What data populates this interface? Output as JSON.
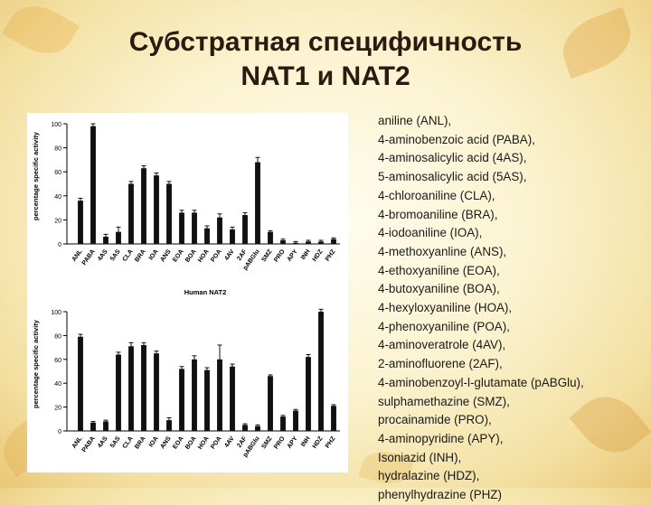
{
  "title": {
    "line1": "Субстратная специфичность",
    "line2": "NAT1 и NAT2"
  },
  "legend_items": [
    "aniline (ANL),",
    "4-aminobenzoic acid (PABA),",
    "4-aminosalicylic acid (4AS),",
    "5-aminosalicylic acid (5AS),",
    "4-chloroaniline (CLA),",
    " 4-bromoaniline (BRA),",
    " 4-iodoaniline (IOA),",
    " 4-methoxyanline (ANS),",
    " 4-ethoxyaniline (EOA),",
    " 4-butoxyaniline (BOA),",
    " 4-hexyloxyaniline (HOA),",
    " 4-phenoxyaniline (POA),",
    "4-aminoveratrole (4AV),",
    "2-aminofluorene (2AF),",
    "4-aminobenzoyl-l-glutamate (pABGlu),",
    "sulphamethazine (SMZ),",
    "procainamide (PRO),",
    "4-aminopyridine (APY),",
    "Isoniazid (INH),",
    "hydralazine (HDZ),",
    "phenylhydrazine (PHZ)"
  ],
  "colors": {
    "bar": "#111111",
    "text": "#2a1a10"
  },
  "chart_data": [
    {
      "type": "bar",
      "title": "",
      "xlabel": "",
      "ylabel": "percentage specific activity",
      "ylim": [
        0,
        100
      ],
      "yticks": [
        0,
        20,
        40,
        60,
        80,
        100
      ],
      "categories": [
        "ANL",
        "PABA",
        "4AS",
        "5AS",
        "CLA",
        "BRA",
        "IOA",
        "ANS",
        "EOA",
        "BOA",
        "HOA",
        "POA",
        "4AV",
        "2AF",
        "pABGlu",
        "SMZ",
        "PRO",
        "APY",
        "INH",
        "HDZ",
        "PHZ"
      ],
      "values": [
        36,
        98,
        6,
        10,
        50,
        63,
        57,
        50,
        26,
        26,
        13,
        22,
        12,
        24,
        68,
        10,
        3,
        1,
        2,
        2,
        4
      ],
      "errors": [
        2,
        2,
        2,
        4,
        2,
        2,
        2,
        2,
        2,
        2,
        2,
        3,
        2,
        2,
        4,
        1,
        1,
        1,
        1,
        1,
        1
      ]
    },
    {
      "type": "bar",
      "title": "Human NAT2",
      "xlabel": "",
      "ylabel": "percentage specific activity",
      "ylim": [
        0,
        100
      ],
      "yticks": [
        0,
        20,
        40,
        60,
        80,
        100
      ],
      "categories": [
        "ANL",
        "PABA",
        "4AS",
        "5AS",
        "CLA",
        "BRA",
        "IOA",
        "ANS",
        "EOA",
        "BOA",
        "HOA",
        "POA",
        "4AV",
        "2AF",
        "pABGlu",
        "SMZ",
        "PRO",
        "APY",
        "INH",
        "HDZ",
        "PHZ"
      ],
      "values": [
        79,
        7,
        8,
        64,
        71,
        72,
        65,
        9,
        52,
        60,
        51,
        60,
        54,
        5,
        4,
        46,
        12,
        17,
        62,
        100,
        21
      ],
      "errors": [
        2,
        1,
        1,
        2,
        3,
        2,
        2,
        2,
        2,
        3,
        2,
        12,
        2,
        1,
        1,
        1,
        1,
        1,
        2,
        2,
        1
      ]
    }
  ]
}
